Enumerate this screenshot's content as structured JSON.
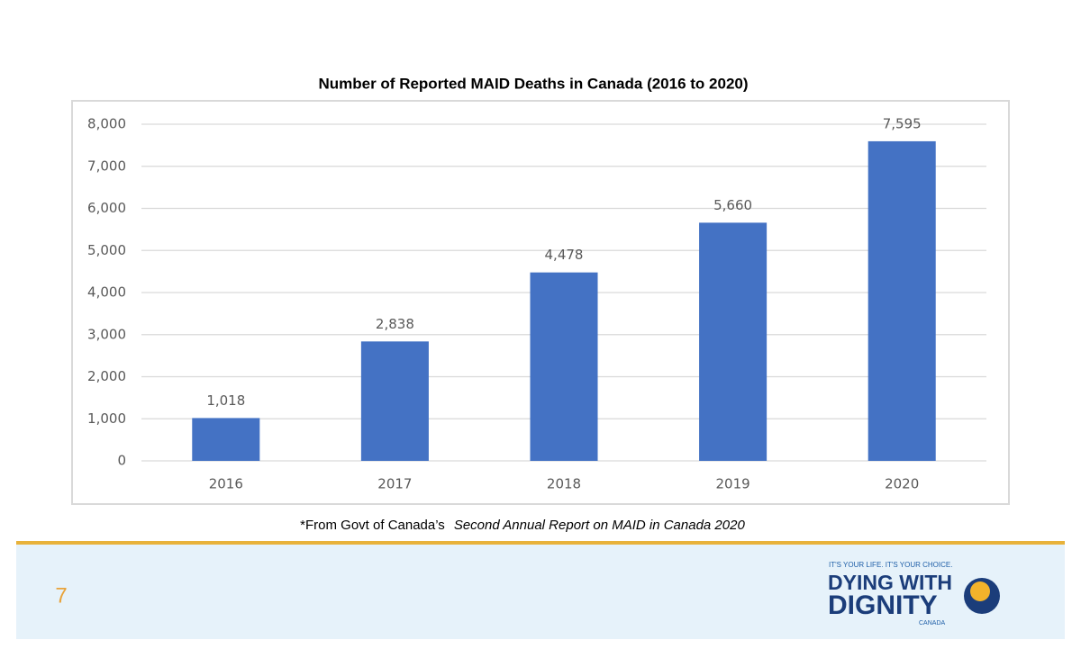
{
  "chart_data": {
    "type": "bar",
    "title": "Number of Reported MAID Deaths in Canada (2016 to 2020)",
    "categories": [
      "2016",
      "2017",
      "2018",
      "2019",
      "2020"
    ],
    "values": [
      1018,
      2838,
      4478,
      5660,
      7595
    ],
    "value_labels": [
      "1,018",
      "2,838",
      "4,478",
      "5,660",
      "7,595"
    ],
    "color": "#4472c4",
    "ylim": [
      0,
      8000
    ],
    "yticks": [
      0,
      {
        "value": 1000,
        "label": "1,000"
      },
      {
        "value": 2000,
        "label": "2,000"
      },
      {
        "value": 3000,
        "label": "3,000"
      },
      {
        "value": 4000,
        "label": "4,000"
      },
      {
        "value": 5000,
        "label": "5,000"
      },
      {
        "value": 6000,
        "label": "6,000"
      },
      {
        "value": 7000,
        "label": "7,000"
      },
      {
        "value": 8000,
        "label": "8,000"
      }
    ],
    "grid": true
  },
  "footnote": {
    "source": "*From Govt of Canada’s",
    "report": "Second Annual Report on MAID in Canada 2020"
  },
  "page_number": 7,
  "logo": {
    "tagline": "IT'S YOUR LIFE. IT'S YOUR CHOICE.",
    "line1": "DYING WITH",
    "line2": "DIGNITY",
    "line3": "CANADA"
  }
}
